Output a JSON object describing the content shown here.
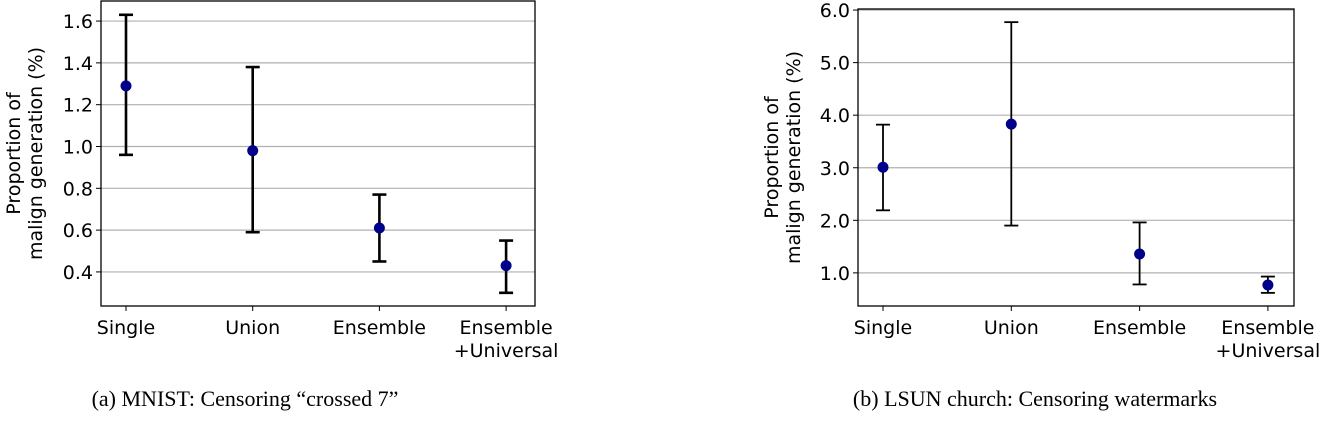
{
  "colors": {
    "marker": "#00008b",
    "errorbar": "#000000",
    "grid": "#b0b0b0"
  },
  "chart_data": [
    {
      "type": "scatter",
      "subtype": "errorbar",
      "caption": "(a) MNIST: Censoring “crossed 7”",
      "ylabel": [
        "Proportion of",
        "malign generation (%)"
      ],
      "categories": [
        [
          "Single"
        ],
        [
          "Union"
        ],
        [
          "Ensemble"
        ],
        [
          "Ensemble",
          "+Universal"
        ]
      ],
      "values": [
        1.29,
        0.98,
        0.61,
        0.43
      ],
      "lower": [
        0.96,
        0.59,
        0.45,
        0.3
      ],
      "upper": [
        1.63,
        1.38,
        0.77,
        0.55
      ],
      "yticks": [
        0.4,
        0.6,
        0.8,
        1.0,
        1.2,
        1.4,
        1.6
      ],
      "ytick_labels": [
        "0.4",
        "0.6",
        "0.8",
        "1.0",
        "1.2",
        "1.4",
        "1.6"
      ],
      "ylim": [
        0.237,
        1.696
      ],
      "grid": "horizontal"
    },
    {
      "type": "scatter",
      "subtype": "errorbar",
      "caption": "(b) LSUN church: Censoring watermarks",
      "ylabel": [
        "Proportion of",
        "malign generation (%)"
      ],
      "categories": [
        [
          "Single"
        ],
        [
          "Union"
        ],
        [
          "Ensemble"
        ],
        [
          "Ensemble",
          "+Universal"
        ]
      ],
      "values": [
        3.01,
        3.83,
        1.36,
        0.77
      ],
      "lower": [
        2.19,
        1.9,
        0.78,
        0.62
      ],
      "upper": [
        3.82,
        5.77,
        1.96,
        0.93
      ],
      "yticks": [
        1.0,
        2.0,
        3.0,
        4.0,
        5.0,
        6.0
      ],
      "ytick_labels": [
        "1.0",
        "2.0",
        "3.0",
        "4.0",
        "5.0",
        "6.0"
      ],
      "ylim": [
        0.37,
        6.02
      ],
      "grid": "horizontal"
    }
  ]
}
